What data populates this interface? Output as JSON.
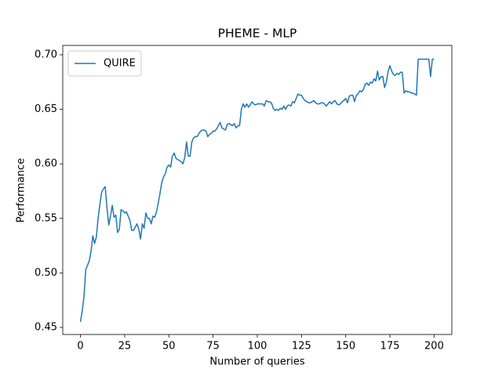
{
  "chart_data": {
    "type": "line",
    "title": "PHEME - MLP",
    "xlabel": "Number of queries",
    "ylabel": "Performance",
    "legend": "upper left",
    "x": [
      0,
      1,
      2,
      3,
      4,
      5,
      6,
      7,
      8,
      9,
      10,
      11,
      12,
      13,
      14,
      15,
      16,
      17,
      18,
      19,
      20,
      21,
      22,
      23,
      24,
      25,
      26,
      27,
      28,
      29,
      30,
      31,
      32,
      33,
      34,
      35,
      36,
      37,
      38,
      39,
      40,
      41,
      42,
      43,
      44,
      45,
      46,
      47,
      48,
      49,
      50,
      51,
      52,
      53,
      54,
      55,
      56,
      57,
      58,
      59,
      60,
      61,
      62,
      63,
      64,
      65,
      66,
      67,
      68,
      69,
      70,
      71,
      72,
      73,
      74,
      75,
      76,
      77,
      78,
      79,
      80,
      81,
      82,
      83,
      84,
      85,
      86,
      87,
      88,
      89,
      90,
      91,
      92,
      93,
      94,
      95,
      96,
      97,
      98,
      99,
      100,
      101,
      102,
      103,
      104,
      105,
      106,
      107,
      108,
      109,
      110,
      111,
      112,
      113,
      114,
      115,
      116,
      117,
      118,
      119,
      120,
      121,
      122,
      123,
      124,
      125,
      126,
      127,
      128,
      129,
      130,
      131,
      132,
      133,
      134,
      135,
      136,
      137,
      138,
      139,
      140,
      141,
      142,
      143,
      144,
      145,
      146,
      147,
      148,
      149,
      150,
      151,
      152,
      153,
      154,
      155,
      156,
      157,
      158,
      159,
      160,
      161,
      162,
      163,
      164,
      165,
      166,
      167,
      168,
      169,
      170,
      171,
      172,
      173,
      174,
      175,
      176,
      177,
      178,
      179,
      180,
      181,
      182,
      183,
      184,
      185,
      186,
      187,
      188,
      189,
      190,
      191,
      192,
      193,
      194,
      195,
      196,
      197,
      198,
      199,
      200
    ],
    "series": [
      {
        "name": "QUIRE",
        "color": "#1f77b4",
        "values": [
          0.455,
          0.465,
          0.478,
          0.503,
          0.507,
          0.511,
          0.52,
          0.534,
          0.527,
          0.533,
          0.55,
          0.563,
          0.574,
          0.577,
          0.579,
          0.56,
          0.544,
          0.552,
          0.562,
          0.551,
          0.553,
          0.537,
          0.54,
          0.558,
          0.557,
          0.555,
          0.556,
          0.552,
          0.548,
          0.539,
          0.539,
          0.542,
          0.545,
          0.54,
          0.531,
          0.545,
          0.541,
          0.555,
          0.55,
          0.55,
          0.545,
          0.552,
          0.551,
          0.556,
          0.564,
          0.573,
          0.583,
          0.588,
          0.591,
          0.597,
          0.599,
          0.597,
          0.607,
          0.61,
          0.605,
          0.604,
          0.603,
          0.602,
          0.6,
          0.606,
          0.62,
          0.607,
          0.607,
          0.62,
          0.624,
          0.625,
          0.625,
          0.628,
          0.63,
          0.631,
          0.631,
          0.63,
          0.625,
          0.627,
          0.628,
          0.63,
          0.63,
          0.632,
          0.635,
          0.638,
          0.633,
          0.632,
          0.631,
          0.636,
          0.637,
          0.636,
          0.635,
          0.637,
          0.633,
          0.635,
          0.635,
          0.65,
          0.655,
          0.652,
          0.655,
          0.652,
          0.654,
          0.657,
          0.655,
          0.654,
          0.655,
          0.655,
          0.655,
          0.655,
          0.653,
          0.658,
          0.657,
          0.657,
          0.656,
          0.651,
          0.649,
          0.65,
          0.649,
          0.651,
          0.65,
          0.653,
          0.65,
          0.653,
          0.654,
          0.653,
          0.657,
          0.656,
          0.66,
          0.664,
          0.663,
          0.663,
          0.66,
          0.658,
          0.657,
          0.656,
          0.656,
          0.657,
          0.658,
          0.656,
          0.655,
          0.655,
          0.656,
          0.656,
          0.655,
          0.653,
          0.655,
          0.657,
          0.655,
          0.657,
          0.658,
          0.655,
          0.654,
          0.655,
          0.657,
          0.658,
          0.66,
          0.656,
          0.662,
          0.663,
          0.663,
          0.657,
          0.663,
          0.664,
          0.667,
          0.666,
          0.668,
          0.673,
          0.674,
          0.672,
          0.675,
          0.674,
          0.678,
          0.676,
          0.685,
          0.677,
          0.68,
          0.68,
          0.67,
          0.675,
          0.685,
          0.69,
          0.685,
          0.682,
          0.681,
          0.683,
          0.682,
          0.684,
          0.684,
          0.665,
          0.667,
          0.666,
          0.666,
          0.665,
          0.665,
          0.664,
          0.663,
          0.696,
          0.696,
          0.696,
          0.696,
          0.696,
          0.696,
          0.696,
          0.68,
          0.696,
          0.696
        ]
      }
    ],
    "xlim": [
      -10,
      210
    ],
    "xticks": [
      0,
      25,
      50,
      75,
      100,
      125,
      150,
      175,
      200
    ],
    "ylim": [
      0.4435,
      0.7086
    ],
    "yticks": [
      0.45,
      {
        "value": 0.5,
        "label": "0.50"
      },
      0.55,
      {
        "value": 0.6,
        "label": "0.60"
      },
      0.65,
      {
        "value": 0.7,
        "label": "0.70"
      }
    ]
  }
}
